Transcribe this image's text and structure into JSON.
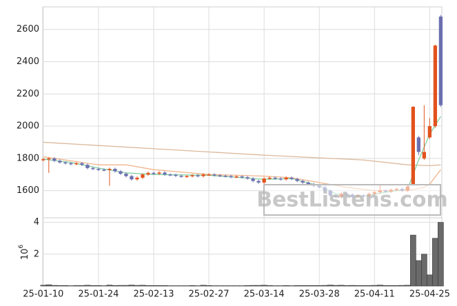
{
  "chart_data": [
    {
      "type": "candlestick",
      "watermark": "BestListens.com",
      "categories": [
        "25-01-10",
        null,
        null,
        null,
        null,
        null,
        null,
        null,
        null,
        null,
        "25-01-24",
        null,
        null,
        null,
        null,
        null,
        null,
        null,
        null,
        null,
        "25-02-13",
        null,
        null,
        null,
        null,
        null,
        null,
        null,
        null,
        null,
        "25-02-27",
        null,
        null,
        null,
        null,
        null,
        null,
        null,
        null,
        null,
        "25-03-14",
        null,
        null,
        null,
        null,
        null,
        null,
        null,
        null,
        null,
        "25-03-28",
        null,
        null,
        null,
        null,
        null,
        null,
        null,
        null,
        null,
        "25-04-11",
        null,
        null,
        null,
        null,
        null,
        null,
        null,
        null,
        null,
        "25-04-25",
        null,
        null
      ],
      "open": [
        1790,
        1795,
        1800,
        1785,
        1775,
        1770,
        1765,
        1770,
        1760,
        1740,
        1735,
        1730,
        1728,
        1735,
        1720,
        1705,
        1690,
        1670,
        1680,
        1700,
        1710,
        1705,
        1712,
        1700,
        1698,
        1692,
        1688,
        1690,
        1695,
        1690,
        1700,
        1700,
        1695,
        1692,
        1690,
        1685,
        1688,
        1683,
        1675,
        1660,
        1650,
        1675,
        1680,
        1675,
        1670,
        1680,
        1672,
        1660,
        1650,
        1640,
        1630,
        1620,
        1600,
        1570,
        1560,
        1580,
        1575,
        1560,
        1570,
        1565,
        1580,
        1590,
        1600,
        1595,
        1605,
        1610,
        1600,
        1640,
        1930,
        1800,
        1930,
        2000,
        2680
      ],
      "high": [
        1803,
        1808,
        1808,
        1793,
        1783,
        1778,
        1778,
        1778,
        1768,
        1748,
        1743,
        1738,
        1743,
        1743,
        1728,
        1713,
        1698,
        1688,
        1708,
        1718,
        1718,
        1720,
        1720,
        1708,
        1706,
        1700,
        1698,
        1703,
        1703,
        1708,
        1708,
        1708,
        1703,
        1700,
        1698,
        1696,
        1696,
        1691,
        1683,
        1668,
        1683,
        1688,
        1688,
        1683,
        1688,
        1688,
        1680,
        1668,
        1658,
        1648,
        1638,
        1628,
        1608,
        1578,
        1588,
        1588,
        1583,
        1578,
        1578,
        1588,
        1598,
        1640,
        1608,
        1613,
        1618,
        1618,
        1633,
        2125,
        1940,
        2130,
        2050,
        2505,
        2690
      ],
      "low": [
        1782,
        1710,
        1777,
        1767,
        1762,
        1757,
        1757,
        1752,
        1732,
        1727,
        1722,
        1720,
        1630,
        1712,
        1697,
        1682,
        1662,
        1662,
        1672,
        1692,
        1697,
        1697,
        1692,
        1690,
        1684,
        1680,
        1680,
        1682,
        1682,
        1682,
        1692,
        1687,
        1684,
        1682,
        1677,
        1677,
        1675,
        1667,
        1652,
        1642,
        1642,
        1667,
        1667,
        1662,
        1662,
        1664,
        1652,
        1642,
        1632,
        1622,
        1612,
        1592,
        1562,
        1552,
        1552,
        1567,
        1552,
        1552,
        1557,
        1557,
        1572,
        1582,
        1587,
        1587,
        1597,
        1592,
        1592,
        1630,
        1820,
        1790,
        1920,
        1990,
        2120
      ],
      "close": [
        1795,
        1800,
        1785,
        1775,
        1770,
        1765,
        1770,
        1760,
        1740,
        1735,
        1730,
        1728,
        1735,
        1720,
        1705,
        1690,
        1670,
        1680,
        1700,
        1710,
        1705,
        1712,
        1700,
        1698,
        1692,
        1688,
        1690,
        1695,
        1690,
        1700,
        1700,
        1695,
        1692,
        1690,
        1685,
        1688,
        1683,
        1675,
        1660,
        1650,
        1675,
        1680,
        1675,
        1670,
        1680,
        1672,
        1660,
        1650,
        1640,
        1630,
        1620,
        1600,
        1570,
        1560,
        1580,
        1575,
        1560,
        1570,
        1565,
        1580,
        1590,
        1600,
        1595,
        1605,
        1610,
        1600,
        1625,
        2120,
        1840,
        1840,
        2000,
        2500,
        2130
      ],
      "up_color": "#e2521d",
      "down_color": "#6b6faf",
      "lines": [
        {
          "color": "#dcb89a",
          "x": [
            0,
            40,
            58,
            66,
            70,
            72
          ],
          "values": [
            1900,
            1820,
            1790,
            1760,
            1755,
            1760
          ]
        },
        {
          "color": "#f0b48a",
          "x": [
            0,
            10,
            15,
            20,
            30,
            40,
            45,
            50,
            55,
            60,
            66,
            69,
            70,
            72
          ],
          "values": [
            1810,
            1760,
            1760,
            1730,
            1700,
            1690,
            1680,
            1650,
            1620,
            1600,
            1600,
            1620,
            1640,
            1730
          ]
        },
        {
          "color": "#7fd0a0",
          "x": [
            0,
            5,
            10,
            15,
            20,
            30,
            40,
            45,
            50,
            53,
            58,
            62,
            66,
            67,
            68,
            70,
            72
          ],
          "values": [
            1795,
            1775,
            1740,
            1710,
            1700,
            1695,
            1670,
            1675,
            1630,
            1580,
            1565,
            1590,
            1610,
            1700,
            1790,
            1950,
            2060
          ]
        }
      ],
      "xlim": [
        -0.1,
        72.2
      ],
      "ylim": [
        1440,
        2740
      ],
      "yticks": [
        1600,
        1800,
        2000,
        2200,
        2400,
        2600
      ],
      "grid": true
    },
    {
      "type": "bar",
      "values": [
        0.05,
        0.08,
        0.04,
        0.03,
        0.03,
        0.02,
        0.03,
        0.03,
        0.05,
        0.03,
        0.03,
        0.02,
        0.06,
        0.03,
        0.04,
        0.04,
        0.06,
        0.04,
        0.05,
        0.03,
        0.03,
        0.03,
        0.03,
        0.02,
        0.02,
        0.02,
        0.02,
        0.03,
        0.02,
        0.05,
        0.03,
        0.02,
        0.02,
        0.02,
        0.02,
        0.02,
        0.02,
        0.03,
        0.04,
        0.04,
        0.05,
        0.03,
        0.02,
        0.02,
        0.03,
        0.02,
        0.03,
        0.03,
        0.03,
        0.03,
        0.03,
        0.04,
        0.06,
        0.04,
        0.05,
        0.03,
        0.04,
        0.03,
        0.03,
        0.03,
        0.04,
        0.06,
        0.03,
        0.03,
        0.03,
        0.04,
        0.05,
        3.2,
        1.6,
        2.0,
        0.7,
        3.0,
        4.0
      ],
      "color": "#6a6a6a",
      "y_label_base": "10",
      "y_label_exponent": "6",
      "ylim": [
        0,
        4.2
      ],
      "yticks": [
        2,
        4
      ],
      "grid": true
    }
  ]
}
